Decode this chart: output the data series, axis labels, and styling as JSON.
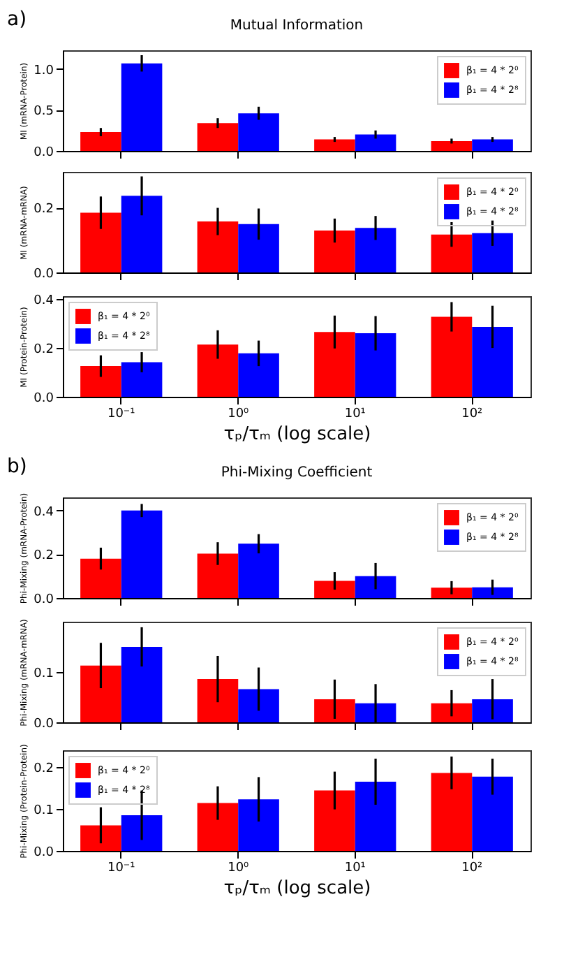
{
  "chart_data": [
    {
      "type": "bar",
      "title": "Mutual Information",
      "annotations": [
        "a)"
      ],
      "ylabel": "MI (mRNA-Protein)",
      "categories": [
        "10⁻¹",
        "10⁰",
        "10¹",
        "10²"
      ],
      "tick_labels": "y",
      "legend": "top right",
      "ylim": [
        0,
        1.23
      ],
      "yticks": [
        {
          "value": 0,
          "label": "0.0"
        },
        {
          "value": 0.5,
          "label": "0.5"
        },
        {
          "value": 1,
          "label": "1.0"
        }
      ],
      "series": [
        {
          "name": "β₁ = 4 * 2⁰",
          "color": "#ff0000",
          "values": [
            0.23,
            0.34,
            0.14,
            0.12
          ],
          "errors": [
            0.05,
            0.06,
            0.03,
            0.03
          ]
        },
        {
          "name": "β₁ = 4 * 2⁸",
          "color": "#0000ff",
          "values": [
            1.07,
            0.46,
            0.2,
            0.14
          ],
          "errors": [
            0.1,
            0.08,
            0.05,
            0.03
          ]
        }
      ]
    },
    {
      "type": "bar",
      "ylabel": "MI (mRNA-mRNA)",
      "categories": [
        "10⁻¹",
        "10⁰",
        "10¹",
        "10²"
      ],
      "tick_labels": "y",
      "legend": "top right",
      "ylim": [
        0,
        0.31
      ],
      "yticks": [
        {
          "value": 0,
          "label": "0.0"
        },
        {
          "value": 0.2,
          "label": "0.2"
        }
      ],
      "series": [
        {
          "name": "β₁ = 4 * 2⁰",
          "color": "#ff0000",
          "values": [
            0.184,
            0.157,
            0.129,
            0.117
          ],
          "errors": [
            0.05,
            0.042,
            0.037,
            0.038
          ]
        },
        {
          "name": "β₁ = 4 * 2⁸",
          "color": "#0000ff",
          "values": [
            0.236,
            0.149,
            0.137,
            0.121
          ],
          "errors": [
            0.06,
            0.048,
            0.037,
            0.039
          ]
        }
      ]
    },
    {
      "type": "bar",
      "ylabel": "MI (Protein-Protein)",
      "xlabel": "τₚ/τₘ (log scale)",
      "categories": [
        "10⁻¹",
        "10⁰",
        "10¹",
        "10²"
      ],
      "legend": "top left",
      "ylim": [
        0,
        0.41
      ],
      "yticks": [
        {
          "value": 0,
          "label": "0.0"
        },
        {
          "value": 0.2,
          "label": "0.2"
        },
        {
          "value": 0.4,
          "label": "0.4"
        }
      ],
      "series": [
        {
          "name": "β₁ = 4 * 2⁰",
          "color": "#ff0000",
          "values": [
            0.125,
            0.213,
            0.264,
            0.326
          ],
          "errors": [
            0.044,
            0.058,
            0.067,
            0.06
          ]
        },
        {
          "name": "β₁ = 4 * 2⁸",
          "color": "#0000ff",
          "values": [
            0.141,
            0.177,
            0.259,
            0.285
          ],
          "errors": [
            0.041,
            0.052,
            0.07,
            0.086
          ]
        }
      ]
    },
    {
      "type": "bar",
      "title": "Phi-Mixing Coefficient",
      "annotations": [
        "b)"
      ],
      "ylabel": "Phi-Mixing (mRNA-Protein)",
      "categories": [
        "10⁻¹",
        "10⁰",
        "10¹",
        "10²"
      ],
      "tick_labels": "y",
      "legend": "top right",
      "ylim": [
        0,
        0.46
      ],
      "yticks": [
        {
          "value": 0,
          "label": "0.0"
        },
        {
          "value": 0.2,
          "label": "0.2"
        },
        {
          "value": 0.4,
          "label": "0.4"
        }
      ],
      "series": [
        {
          "name": "β₁ = 4 * 2⁰",
          "color": "#ff0000",
          "values": [
            0.18,
            0.203,
            0.078,
            0.047
          ],
          "errors": [
            0.05,
            0.052,
            0.04,
            0.03
          ]
        },
        {
          "name": "β₁ = 4 * 2⁸",
          "color": "#0000ff",
          "values": [
            0.4,
            0.248,
            0.1,
            0.049
          ],
          "errors": [
            0.03,
            0.044,
            0.06,
            0.035
          ]
        }
      ]
    },
    {
      "type": "bar",
      "ylabel": "Phi-Mixing (mRNA-mRNA)",
      "categories": [
        "10⁻¹",
        "10⁰",
        "10¹",
        "10²"
      ],
      "tick_labels": "y",
      "legend": "top right",
      "ylim": [
        0,
        0.2
      ],
      "yticks": [
        {
          "value": 0,
          "label": "0.0"
        },
        {
          "value": 0.1,
          "label": "0.1"
        }
      ],
      "series": [
        {
          "name": "β₁ = 4 * 2⁰",
          "color": "#ff0000",
          "values": [
            0.113,
            0.086,
            0.046,
            0.038
          ],
          "errors": [
            0.045,
            0.046,
            0.039,
            0.026
          ]
        },
        {
          "name": "β₁ = 4 * 2⁸",
          "color": "#0000ff",
          "values": [
            0.15,
            0.066,
            0.038,
            0.046
          ],
          "errors": [
            0.039,
            0.043,
            0.038,
            0.04
          ]
        }
      ]
    },
    {
      "type": "bar",
      "ylabel": "Phi-Mixing (Protein-Protein)",
      "xlabel": "τₚ/τₘ (log scale)",
      "categories": [
        "10⁻¹",
        "10⁰",
        "10¹",
        "10²"
      ],
      "legend": "top left",
      "ylim": [
        0,
        0.24
      ],
      "yticks": [
        {
          "value": 0,
          "label": "0.0"
        },
        {
          "value": 0.1,
          "label": "0.1"
        },
        {
          "value": 0.2,
          "label": "0.2"
        }
      ],
      "series": [
        {
          "name": "β₁ = 4 * 2⁰",
          "color": "#ff0000",
          "values": [
            0.061,
            0.114,
            0.144,
            0.186
          ],
          "errors": [
            0.043,
            0.04,
            0.045,
            0.039
          ]
        },
        {
          "name": "β₁ = 4 * 2⁸",
          "color": "#0000ff",
          "values": [
            0.085,
            0.123,
            0.165,
            0.177
          ],
          "errors": [
            0.059,
            0.053,
            0.055,
            0.043
          ]
        }
      ]
    }
  ]
}
